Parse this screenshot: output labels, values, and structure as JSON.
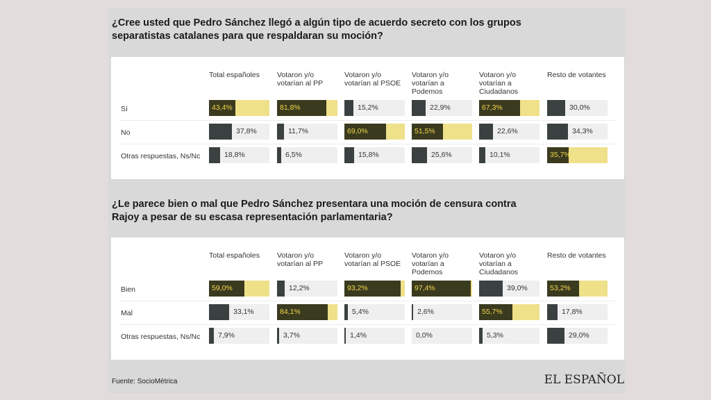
{
  "columns": [
    "Total españoles",
    "Votaron y/o\nvotarían al PP",
    "Votaron y/o\nvotarían al PSOE",
    "Votaron y/o\nvotarían a\nPodemos",
    "Votaron y/o\nvotarían a\nCiudadanos",
    "Resto de votantes"
  ],
  "question1": "¿Cree usted que Pedro Sánchez llegó a algún tipo de acuerdo secreto con los grupos separatistas catalanes para que respaldaran su moción?",
  "question2": "¿Le parece bien o mal que Pedro Sánchez presentara una moción de censura contra Rajoy a pesar de su escasa representación parlamentaria?",
  "footer": "Fuente: SocioMétrica",
  "logo": "EL ESPAÑOL",
  "colors": {
    "dark": "#3b4141",
    "highlight_dark": "#3a3a1f",
    "highlight_yellow": "#efe08a",
    "track": "#efefef",
    "highlight_text": "#f2d84a"
  },
  "chart_data": [
    {
      "type": "table",
      "title": "¿Cree usted que Pedro Sánchez llegó a algún tipo de acuerdo secreto con los grupos separatistas catalanes para que respaldaran su moción?",
      "columns": [
        "Total españoles",
        "Votaron y/o votarían al PP",
        "Votaron y/o votarían al PSOE",
        "Votaron y/o votarían a Podemos",
        "Votaron y/o votarían a Ciudadanos",
        "Resto de votantes"
      ],
      "rows": [
        {
          "label": "Sí",
          "values": [
            43.4,
            81.8,
            15.2,
            22.9,
            67.3,
            30.0
          ],
          "labels": [
            "43,4%",
            "81,8%",
            "15,2%",
            "22,9%",
            "67,3%",
            "30,0%"
          ],
          "highlight": [
            true,
            true,
            false,
            false,
            true,
            false
          ]
        },
        {
          "label": "No",
          "values": [
            37.8,
            11.7,
            69.0,
            51.5,
            22.6,
            34.3
          ],
          "labels": [
            "37,8%",
            "11,7%",
            "69,0%",
            "51,5%",
            "22,6%",
            "34,3%"
          ],
          "highlight": [
            false,
            false,
            true,
            true,
            false,
            false
          ]
        },
        {
          "label": "Otras respuestas, Ns/Nc",
          "values": [
            18.8,
            6.5,
            15.8,
            25.6,
            10.1,
            35.7
          ],
          "labels": [
            "18,8%",
            "6,5%",
            "15,8%",
            "25,6%",
            "10,1%",
            "35,7%"
          ],
          "highlight": [
            false,
            false,
            false,
            false,
            false,
            true
          ]
        }
      ]
    },
    {
      "type": "table",
      "title": "¿Le parece bien o mal que Pedro Sánchez presentara una moción de censura contra Rajoy a pesar de su escasa representación parlamentaria?",
      "columns": [
        "Total españoles",
        "Votaron y/o votarían al PP",
        "Votaron y/o votarían al PSOE",
        "Votaron y/o votarían a Podemos",
        "Votaron y/o votarían a Ciudadanos",
        "Resto de votantes"
      ],
      "rows": [
        {
          "label": "Bien",
          "values": [
            59.0,
            12.2,
            93.2,
            97.4,
            39.0,
            53.2
          ],
          "labels": [
            "59,0%",
            "12,2%",
            "93,2%",
            "97,4%",
            "39,0%",
            "53,2%"
          ],
          "highlight": [
            true,
            false,
            true,
            true,
            false,
            true
          ]
        },
        {
          "label": "Mal",
          "values": [
            33.1,
            84.1,
            5.4,
            2.6,
            55.7,
            17.8
          ],
          "labels": [
            "33,1%",
            "84,1%",
            "5,4%",
            "2,6%",
            "55,7%",
            "17,8%"
          ],
          "highlight": [
            false,
            true,
            false,
            false,
            true,
            false
          ]
        },
        {
          "label": "Otras respuestas, Ns/Nc",
          "values": [
            7.9,
            3.7,
            1.4,
            0.0,
            5.3,
            29.0
          ],
          "labels": [
            "7,9%",
            "3,7%",
            "1,4%",
            "0,0%",
            "5,3%",
            "29,0%"
          ],
          "highlight": [
            false,
            false,
            false,
            false,
            false,
            false
          ]
        }
      ]
    }
  ]
}
